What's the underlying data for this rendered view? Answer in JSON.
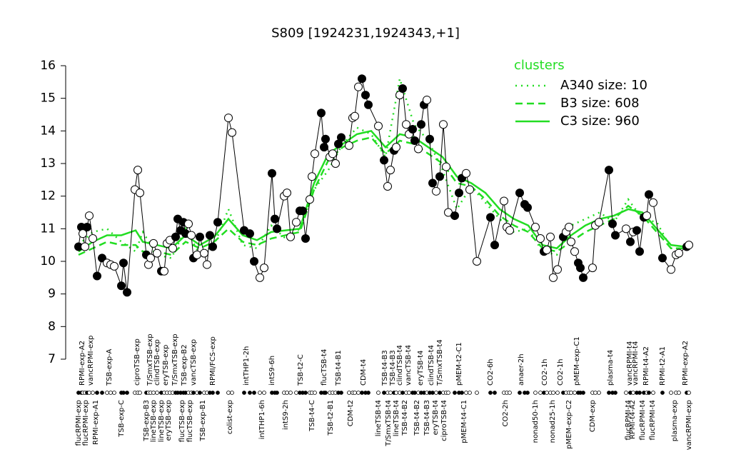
{
  "chart_data": {
    "type": "line",
    "title": "S809 [1924231,1924343,+1]",
    "xlim": [
      0,
      870
    ],
    "ylim": [
      7,
      16
    ],
    "yticks": [
      7,
      8,
      9,
      10,
      11,
      12,
      13,
      14,
      15,
      16
    ],
    "x": [
      10,
      14,
      16,
      19,
      22,
      25,
      30,
      36,
      43,
      50,
      55,
      60,
      70,
      73,
      78,
      89,
      93,
      96,
      105,
      108,
      111,
      115,
      120,
      126,
      130,
      134,
      138,
      142,
      146,
      149,
      153,
      157,
      160,
      164,
      168,
      171,
      176,
      180,
      186,
      190,
      194,
      198,
      205,
      220,
      225,
      242,
      250,
      256,
      264,
      270,
      281,
      285,
      288,
      298,
      302,
      307,
      315,
      320,
      324,
      328,
      334,
      337,
      341,
      350,
      354,
      356,
      362,
      366,
      370,
      374,
      378,
      389,
      394,
      397,
      402,
      407,
      412,
      416,
      430,
      438,
      443,
      447,
      452,
      455,
      460,
      464,
      469,
      473,
      478,
      481,
      486,
      490,
      494,
      498,
      502,
      506,
      511,
      516,
      521,
      525,
      528,
      537,
      543,
      547,
      553,
      558,
      568,
      587,
      593,
      606,
      610,
      614,
      628,
      635,
      639,
      650,
      657,
      662,
      666,
      671,
      675,
      681,
      689,
      693,
      697,
      700,
      705,
      710,
      713,
      717,
      730,
      734,
      739,
      753,
      758,
      762,
      777,
      783,
      787,
      792,
      796,
      802,
      806,
      809,
      815,
      828,
      840,
      847,
      851,
      862,
      865
    ],
    "values": [
      10.45,
      11.05,
      10.85,
      10.45,
      11.05,
      11.4,
      10.7,
      9.55,
      10.1,
      9.95,
      9.9,
      9.85,
      9.25,
      9.95,
      9.05,
      12.2,
      12.8,
      12.1,
      10.2,
      9.9,
      10.1,
      10.55,
      10.25,
      9.7,
      9.7,
      10.55,
      10.65,
      10.4,
      10.75,
      11.3,
      10.95,
      11.2,
      10.85,
      11.15,
      10.8,
      10.1,
      10.2,
      10.75,
      10.25,
      9.9,
      10.8,
      10.45,
      11.2,
      14.4,
      13.95,
      10.95,
      10.85,
      10.0,
      9.5,
      9.8,
      12.7,
      11.3,
      11.0,
      12.0,
      12.1,
      10.75,
      11.2,
      11.55,
      11.55,
      10.7,
      11.9,
      12.6,
      13.3,
      14.55,
      13.5,
      13.75,
      13.2,
      13.3,
      13.0,
      13.6,
      13.8,
      13.55,
      14.4,
      14.45,
      15.35,
      15.6,
      15.1,
      14.8,
      14.15,
      13.1,
      12.3,
      12.8,
      13.4,
      13.5,
      15.1,
      15.3,
      14.2,
      13.9,
      14.05,
      13.7,
      13.45,
      14.2,
      14.8,
      14.95,
      13.75,
      12.4,
      12.15,
      12.6,
      14.2,
      12.9,
      11.5,
      11.4,
      12.1,
      12.55,
      12.7,
      12.2,
      10.0,
      11.35,
      10.5,
      11.85,
      11.05,
      10.95,
      12.1,
      11.75,
      11.65,
      11.05,
      10.7,
      10.3,
      10.35,
      10.75,
      9.5,
      9.75,
      10.75,
      10.9,
      11.05,
      10.6,
      10.3,
      9.95,
      9.8,
      9.5,
      9.8,
      11.1,
      11.2,
      12.8,
      11.15,
      10.8,
      11.0,
      10.6,
      10.9,
      10.95,
      10.3,
      11.35,
      11.4,
      12.05,
      11.8,
      10.1,
      9.75,
      10.2,
      10.25,
      10.45,
      10.5
    ],
    "filled": [
      true,
      true,
      false,
      false,
      true,
      false,
      false,
      true,
      true,
      false,
      false,
      false,
      true,
      true,
      true,
      false,
      false,
      false,
      true,
      false,
      false,
      false,
      false,
      true,
      false,
      false,
      false,
      false,
      true,
      true,
      true,
      true,
      true,
      false,
      false,
      true,
      false,
      true,
      false,
      false,
      true,
      true,
      true,
      false,
      false,
      true,
      true,
      true,
      false,
      false,
      true,
      true,
      true,
      false,
      false,
      false,
      false,
      true,
      true,
      true,
      false,
      false,
      false,
      true,
      true,
      true,
      false,
      false,
      false,
      true,
      true,
      false,
      false,
      false,
      false,
      true,
      true,
      true,
      false,
      true,
      false,
      false,
      true,
      false,
      false,
      true,
      false,
      false,
      true,
      true,
      false,
      true,
      true,
      false,
      true,
      true,
      false,
      true,
      false,
      false,
      false,
      true,
      true,
      true,
      false,
      false,
      false,
      true,
      true,
      false,
      false,
      false,
      true,
      true,
      true,
      false,
      false,
      true,
      false,
      false,
      false,
      false,
      true,
      false,
      false,
      false,
      false,
      true,
      true,
      true,
      false,
      false,
      false,
      true,
      true,
      true,
      false,
      true,
      false,
      true,
      true,
      true,
      false,
      true,
      false,
      true,
      false,
      false,
      false,
      true,
      false
    ],
    "point_color": "#000000",
    "xticks": [
      {
        "value": 10,
        "label": "flucRPMI-exp"
      },
      {
        "value": 15,
        "label": "RPMI-exp-A2"
      },
      {
        "value": 20,
        "label": "flucRPMI-exp"
      },
      {
        "value": 27,
        "label": "vancRPMI-exp"
      },
      {
        "value": 34,
        "label": "RPMI-exp-A1"
      },
      {
        "value": 53,
        "label": "TSB-exp-A"
      },
      {
        "value": 70,
        "label": "TSB-exp-C"
      },
      {
        "value": 92,
        "label": "ciproTSB-exp"
      },
      {
        "value": 105,
        "label": "TSB-exp-B3"
      },
      {
        "value": 110,
        "label": "T/SmxTSB-exp"
      },
      {
        "value": 115,
        "label": "lineTSB-exp"
      },
      {
        "value": 120,
        "label": "clindTSB-exp"
      },
      {
        "value": 126,
        "label": "lineTSB-exp"
      },
      {
        "value": 132,
        "label": "eryTSB-exp"
      },
      {
        "value": 136,
        "label": "eryTSB-exp"
      },
      {
        "value": 145,
        "label": "T/SmxTSB-exp"
      },
      {
        "value": 155,
        "label": "flucTSB-exp"
      },
      {
        "value": 158,
        "label": "TSB-exp-B2"
      },
      {
        "value": 166,
        "label": "flucTSB-exp"
      },
      {
        "value": 171,
        "label": "vancTSB-exp"
      },
      {
        "value": 184,
        "label": "TSB-exp-B1"
      },
      {
        "value": 198,
        "label": "RPMI/FCS-exp"
      },
      {
        "value": 222,
        "label": "colist-exp"
      },
      {
        "value": 245,
        "label": "intTHP1-2h"
      },
      {
        "value": 267,
        "label": "intTHP1-6h"
      },
      {
        "value": 281,
        "label": "intS9-6h"
      },
      {
        "value": 300,
        "label": "intS9-2h"
      },
      {
        "value": 321,
        "label": "TSB-t2-C"
      },
      {
        "value": 337,
        "label": "TSB-t4-C"
      },
      {
        "value": 354,
        "label": "flucTSB-t4"
      },
      {
        "value": 363,
        "label": "TSB-t2-B1"
      },
      {
        "value": 374,
        "label": "TSB-t4-B1"
      },
      {
        "value": 391,
        "label": "CDM-t2"
      },
      {
        "value": 409,
        "label": "CDM-t4"
      },
      {
        "value": 430,
        "label": "lineTSB-t4"
      },
      {
        "value": 439,
        "label": "TSB-t4-B3"
      },
      {
        "value": 444,
        "label": "T/SmxTSB-t4"
      },
      {
        "value": 450,
        "label": "TSB-t4-B3"
      },
      {
        "value": 455,
        "label": "lineTSB-t4"
      },
      {
        "value": 460,
        "label": "clindTSB-t4"
      },
      {
        "value": 467,
        "label": "TSB-t4-B2"
      },
      {
        "value": 472,
        "label": "vancTSB-t4"
      },
      {
        "value": 484,
        "label": "TSB-t4-B2"
      },
      {
        "value": 489,
        "label": "eryTSB-t4"
      },
      {
        "value": 498,
        "label": "TSB-t4-B3"
      },
      {
        "value": 504,
        "label": "clindTSB-t4"
      },
      {
        "value": 510,
        "label": "eryTSB-t4"
      },
      {
        "value": 516,
        "label": "T/SmxTSB-t4"
      },
      {
        "value": 522,
        "label": "ciproTSB-t4"
      },
      {
        "value": 543,
        "label": "pMEM-t2-C1"
      },
      {
        "value": 550,
        "label": "pMEM-t4-C1"
      },
      {
        "value": 587,
        "label": "CO2-6h"
      },
      {
        "value": 608,
        "label": "CO2-2h"
      },
      {
        "value": 630,
        "label": "anaer-2h"
      },
      {
        "value": 650,
        "label": "nonad50-1h"
      },
      {
        "value": 663,
        "label": "CO2-1h"
      },
      {
        "value": 674,
        "label": "nonad25-1h"
      },
      {
        "value": 685,
        "label": "CO2-1h"
      },
      {
        "value": 697,
        "label": "pMEM-exp-C2"
      },
      {
        "value": 708,
        "label": "pMEM-exp-C1"
      },
      {
        "value": 730,
        "label": "CDM-exp"
      },
      {
        "value": 755,
        "label": "plasma-t4"
      },
      {
        "value": 780,
        "label": "flucRPMI-t4"
      },
      {
        "value": 782,
        "label": "vancRPMI-t4"
      },
      {
        "value": 786,
        "label": "RPMI-t4-A2"
      },
      {
        "value": 790,
        "label": "vancRPMI-t4"
      },
      {
        "value": 800,
        "label": "flucRPMI-t4"
      },
      {
        "value": 805,
        "label": "RPMI-t4-A2"
      },
      {
        "value": 814,
        "label": "flucRPMI-t4"
      },
      {
        "value": 828,
        "label": "RPMI-t2-A1"
      },
      {
        "value": 845,
        "label": "plasma-exp"
      },
      {
        "value": 860,
        "label": "RPMI-exp-A2"
      },
      {
        "value": 865,
        "label": "vancRPMI-exp"
      }
    ],
    "legend_title": "clusters",
    "legend_position": "top-right",
    "series": [
      {
        "name": "A340 size: 10",
        "color": "#22dd22",
        "dash": "dotted",
        "x": [
          10,
          30,
          50,
          70,
          90,
          100,
          120,
          140,
          160,
          180,
          200,
          220,
          240,
          260,
          280,
          300,
          320,
          340,
          360,
          380,
          400,
          420,
          440,
          460,
          480,
          500,
          520,
          540,
          560,
          580,
          600,
          620,
          640,
          660,
          680,
          700,
          720,
          740,
          760,
          780,
          800,
          820,
          840,
          860
        ],
        "values": [
          10.5,
          10.9,
          11.0,
          10.6,
          10.3,
          10.9,
          10.2,
          10.1,
          11.0,
          10.2,
          10.5,
          11.6,
          10.5,
          10.4,
          11.1,
          10.7,
          11.0,
          12.2,
          12.8,
          13.6,
          14.1,
          13.9,
          13.2,
          15.6,
          14.2,
          13.7,
          12.8,
          11.6,
          12.3,
          11.8,
          11.3,
          10.9,
          11.0,
          10.3,
          10.2,
          11.1,
          11.3,
          11.5,
          11.2,
          11.9,
          11.3,
          11.2,
          10.4,
          10.4
        ]
      },
      {
        "name": "B3 size: 608",
        "color": "#22dd22",
        "dash": "dashed",
        "x": [
          10,
          30,
          50,
          70,
          90,
          100,
          120,
          140,
          160,
          180,
          200,
          220,
          240,
          260,
          280,
          300,
          320,
          340,
          360,
          380,
          400,
          420,
          440,
          460,
          480,
          500,
          520,
          540,
          560,
          580,
          600,
          620,
          640,
          660,
          680,
          700,
          720,
          740,
          760,
          780,
          800,
          820,
          840,
          860
        ],
        "values": [
          10.2,
          10.4,
          10.6,
          10.5,
          10.5,
          10.3,
          10.3,
          10.2,
          10.6,
          10.4,
          10.6,
          11.0,
          10.6,
          10.5,
          10.7,
          10.8,
          10.9,
          12.2,
          13.1,
          13.5,
          13.7,
          13.8,
          13.3,
          13.7,
          13.6,
          13.3,
          13.0,
          12.4,
          12.3,
          11.9,
          11.4,
          11.1,
          10.9,
          10.4,
          10.3,
          10.6,
          10.9,
          11.1,
          11.3,
          11.7,
          11.4,
          10.9,
          10.4,
          10.4
        ]
      },
      {
        "name": "C3 size: 960",
        "color": "#22dd22",
        "dash": "solid",
        "x": [
          10,
          30,
          50,
          70,
          90,
          100,
          120,
          140,
          160,
          180,
          200,
          220,
          240,
          260,
          280,
          300,
          320,
          340,
          360,
          380,
          400,
          420,
          440,
          460,
          480,
          500,
          520,
          540,
          560,
          580,
          600,
          620,
          640,
          660,
          680,
          700,
          720,
          740,
          760,
          780,
          800,
          820,
          840,
          860
        ],
        "values": [
          10.3,
          10.6,
          10.8,
          10.8,
          10.95,
          10.6,
          10.5,
          10.4,
          10.8,
          10.5,
          10.75,
          11.3,
          10.8,
          10.65,
          10.9,
          10.95,
          11.0,
          12.4,
          13.3,
          13.6,
          13.9,
          14.0,
          13.5,
          13.9,
          13.8,
          13.5,
          13.2,
          12.6,
          12.4,
          12.1,
          11.6,
          11.3,
          11.1,
          10.5,
          10.4,
          10.8,
          11.1,
          11.3,
          11.4,
          11.6,
          11.5,
          11.0,
          10.5,
          10.45
        ]
      }
    ]
  }
}
